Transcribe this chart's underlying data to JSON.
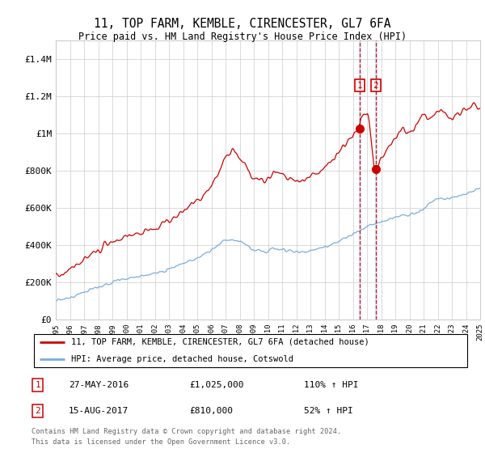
{
  "title": "11, TOP FARM, KEMBLE, CIRENCESTER, GL7 6FA",
  "subtitle": "Price paid vs. HM Land Registry's House Price Index (HPI)",
  "legend_line1": "11, TOP FARM, KEMBLE, CIRENCESTER, GL7 6FA (detached house)",
  "legend_line2": "HPI: Average price, detached house, Cotswold",
  "sale1_date": "27-MAY-2016",
  "sale1_price": 1025000,
  "sale1_label": "110% ↑ HPI",
  "sale2_date": "15-AUG-2017",
  "sale2_price": 810000,
  "sale2_label": "52% ↑ HPI",
  "footnote1": "Contains HM Land Registry data © Crown copyright and database right 2024.",
  "footnote2": "This data is licensed under the Open Government Licence v3.0.",
  "red_color": "#cc0000",
  "blue_color": "#7aacdc",
  "sale_band_color": "#ddeeff",
  "ylim": [
    0,
    1500000
  ],
  "yticks": [
    0,
    200000,
    400000,
    600000,
    800000,
    1000000,
    1200000,
    1400000
  ],
  "ytick_labels": [
    "£0",
    "£200K",
    "£400K",
    "£600K",
    "£800K",
    "£1M",
    "£1.2M",
    "£1.4M"
  ],
  "xstart": 1995,
  "xend": 2025,
  "red_wp_x": [
    1995.0,
    1995.5,
    1996.0,
    1996.5,
    1997.0,
    1997.5,
    1998.0,
    1998.5,
    1999.0,
    1999.5,
    2000.0,
    2000.5,
    2001.0,
    2001.5,
    2002.0,
    2002.5,
    2003.0,
    2003.5,
    2004.0,
    2004.5,
    2005.0,
    2005.5,
    2006.0,
    2006.5,
    2007.0,
    2007.5,
    2008.0,
    2008.5,
    2009.0,
    2009.5,
    2010.0,
    2010.5,
    2011.0,
    2011.5,
    2012.0,
    2012.5,
    2013.0,
    2013.5,
    2014.0,
    2014.5,
    2015.0,
    2015.5,
    2016.0,
    2016.38,
    2016.63,
    2017.0,
    2017.62,
    2018.0,
    2018.5,
    2019.0,
    2019.5,
    2020.0,
    2020.5,
    2021.0,
    2021.5,
    2022.0,
    2022.5,
    2023.0,
    2023.5,
    2024.0,
    2024.5,
    2025.0
  ],
  "red_wp_y": [
    235000,
    245000,
    265000,
    290000,
    320000,
    350000,
    375000,
    395000,
    415000,
    430000,
    450000,
    460000,
    470000,
    475000,
    490000,
    510000,
    530000,
    555000,
    580000,
    610000,
    640000,
    670000,
    720000,
    790000,
    870000,
    910000,
    870000,
    810000,
    760000,
    750000,
    770000,
    790000,
    780000,
    760000,
    745000,
    755000,
    770000,
    790000,
    820000,
    850000,
    890000,
    940000,
    990000,
    1025000,
    1080000,
    1100000,
    810000,
    870000,
    920000,
    970000,
    1010000,
    1000000,
    1050000,
    1100000,
    1080000,
    1120000,
    1100000,
    1090000,
    1110000,
    1130000,
    1150000,
    1120000
  ],
  "blue_wp_x": [
    1995.0,
    1995.5,
    1996.0,
    1996.5,
    1997.0,
    1997.5,
    1998.0,
    1998.5,
    1999.0,
    1999.5,
    2000.0,
    2000.5,
    2001.0,
    2001.5,
    2002.0,
    2002.5,
    2003.0,
    2003.5,
    2004.0,
    2004.5,
    2005.0,
    2005.5,
    2006.0,
    2006.5,
    2007.0,
    2007.5,
    2008.0,
    2008.5,
    2009.0,
    2009.5,
    2010.0,
    2010.5,
    2011.0,
    2011.5,
    2012.0,
    2012.5,
    2013.0,
    2013.5,
    2014.0,
    2014.5,
    2015.0,
    2015.5,
    2016.0,
    2016.5,
    2017.0,
    2017.5,
    2018.0,
    2018.5,
    2019.0,
    2019.5,
    2020.0,
    2020.5,
    2021.0,
    2021.5,
    2022.0,
    2022.5,
    2023.0,
    2023.5,
    2024.0,
    2024.5,
    2025.0
  ],
  "blue_wp_y": [
    100000,
    108000,
    118000,
    130000,
    145000,
    160000,
    175000,
    188000,
    200000,
    210000,
    220000,
    228000,
    235000,
    240000,
    248000,
    258000,
    270000,
    285000,
    300000,
    315000,
    330000,
    350000,
    375000,
    400000,
    425000,
    430000,
    415000,
    395000,
    375000,
    365000,
    370000,
    375000,
    373000,
    368000,
    362000,
    360000,
    368000,
    378000,
    390000,
    405000,
    420000,
    440000,
    460000,
    480000,
    500000,
    515000,
    525000,
    535000,
    548000,
    558000,
    562000,
    575000,
    600000,
    630000,
    645000,
    650000,
    660000,
    665000,
    675000,
    690000,
    700000
  ]
}
